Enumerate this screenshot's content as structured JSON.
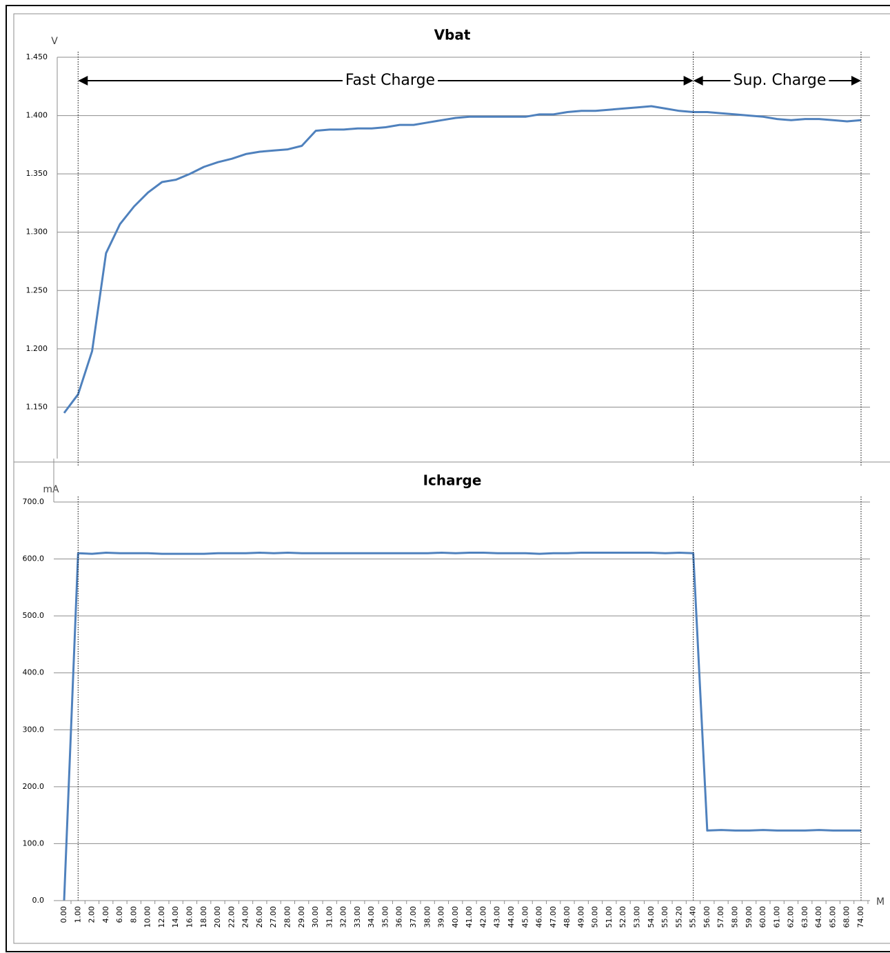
{
  "chart_data": [
    {
      "type": "line",
      "title": "Vbat",
      "y_label": "V",
      "annotations": [
        "Fast Charge",
        "Sup. Charge"
      ],
      "series": [
        {
          "name": "Vbat",
          "color": "#4f81bd",
          "values": [
            1.145,
            1.161,
            1.198,
            1.282,
            1.307,
            1.322,
            1.334,
            1.343,
            1.345,
            1.35,
            1.356,
            1.36,
            1.363,
            1.367,
            1.369,
            1.37,
            1.371,
            1.374,
            1.387,
            1.388,
            1.388,
            1.389,
            1.389,
            1.39,
            1.392,
            1.392,
            1.394,
            1.396,
            1.398,
            1.399,
            1.399,
            1.399,
            1.399,
            1.399,
            1.401,
            1.401,
            1.403,
            1.404,
            1.404,
            1.405,
            1.406,
            1.407,
            1.408,
            1.406,
            1.404,
            1.403,
            1.403,
            1.402,
            1.401,
            1.4,
            1.399,
            1.397,
            1.396,
            1.397,
            1.397,
            1.396,
            1.395,
            1.396
          ]
        }
      ],
      "ylim": [
        1.1,
        1.45
      ],
      "yticks": [
        {
          "value": 1.15,
          "label": "1.150"
        },
        {
          "value": 1.2,
          "label": "1.200"
        },
        {
          "value": 1.25,
          "label": "1.250"
        },
        {
          "value": 1.3,
          "label": "1.300"
        },
        {
          "value": 1.35,
          "label": "1.350"
        },
        {
          "value": 1.4,
          "label": "1.400"
        },
        {
          "value": 1.45,
          "label": "1.450"
        }
      ],
      "grid": true
    },
    {
      "type": "line",
      "title": "Icharge",
      "y_label": "mA",
      "x_label": "M",
      "categories": [
        "0.00",
        "1.00",
        "2.00",
        "4.00",
        "6.00",
        "8.00",
        "10.00",
        "12.00",
        "14.00",
        "16.00",
        "18.00",
        "20.00",
        "22.00",
        "24.00",
        "26.00",
        "27.00",
        "28.00",
        "29.00",
        "30.00",
        "31.00",
        "32.00",
        "33.00",
        "34.00",
        "35.00",
        "36.00",
        "37.00",
        "38.00",
        "39.00",
        "40.00",
        "41.00",
        "42.00",
        "43.00",
        "44.00",
        "45.00",
        "46.00",
        "47.00",
        "48.00",
        "49.00",
        "50.00",
        "51.00",
        "52.00",
        "53.00",
        "54.00",
        "55.00",
        "55.20",
        "55.40",
        "56.00",
        "57.00",
        "58.00",
        "59.00",
        "60.00",
        "61.00",
        "62.00",
        "63.00",
        "64.00",
        "65.00",
        "68.00",
        "74.00"
      ],
      "series": [
        {
          "name": "Icharge",
          "color": "#4f81bd",
          "values": [
            0,
            610,
            609,
            611,
            610,
            610,
            610,
            609,
            609,
            609,
            609,
            610,
            610,
            610,
            611,
            610,
            611,
            610,
            610,
            610,
            610,
            610,
            610,
            610,
            610,
            610,
            610,
            611,
            610,
            611,
            611,
            610,
            610,
            610,
            609,
            610,
            610,
            611,
            611,
            611,
            611,
            611,
            611,
            610,
            611,
            610,
            123,
            124,
            123,
            123,
            124,
            123,
            123,
            123,
            124,
            123,
            123,
            123
          ]
        }
      ],
      "ylim": [
        0,
        700
      ],
      "yticks": [
        {
          "value": 0,
          "label": "0.0"
        },
        {
          "value": 100,
          "label": "100.0"
        },
        {
          "value": 200,
          "label": "200.0"
        },
        {
          "value": 300,
          "label": "300.0"
        },
        {
          "value": 400,
          "label": "400.0"
        },
        {
          "value": 500,
          "label": "500.0"
        },
        {
          "value": 600,
          "label": "600.0"
        },
        {
          "value": 700,
          "label": "700.0"
        }
      ],
      "grid": true
    }
  ]
}
